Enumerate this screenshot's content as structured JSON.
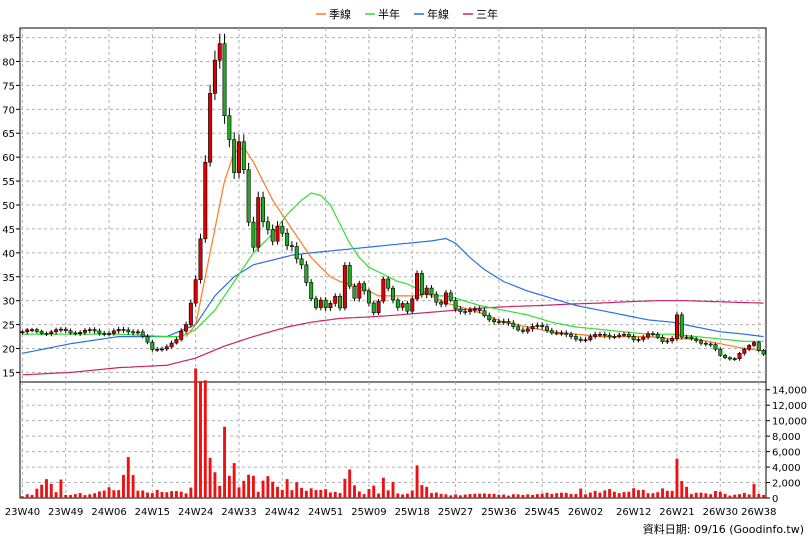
{
  "chart_data": {
    "type": "candlestick",
    "legend": [
      {
        "name": "季線",
        "color": "#ff7a20"
      },
      {
        "name": "半年",
        "color": "#33dd33"
      },
      {
        "name": "年線",
        "color": "#2a6fe0"
      },
      {
        "name": "三年",
        "color": "#cc2266"
      }
    ],
    "legend_position": "top-center",
    "price_axis": {
      "min": 13,
      "max": 87,
      "ticks": [
        15,
        20,
        25,
        30,
        35,
        40,
        45,
        50,
        55,
        60,
        65,
        70,
        75,
        80,
        85
      ],
      "grid": true
    },
    "volume_axis": {
      "min": 0,
      "max": 15000,
      "ticks": [
        0,
        2000,
        4000,
        6000,
        8000,
        10000,
        12000,
        14000
      ],
      "tick_labels": [
        "0",
        "2,000",
        "4,000",
        "6,000",
        "8,000",
        "10,000",
        "12,000",
        "14,000"
      ]
    },
    "x_ticks": [
      "23W40",
      "23W49",
      "24W06",
      "24W15",
      "24W24",
      "24W33",
      "24W42",
      "24W51",
      "25W09",
      "25W18",
      "25W27",
      "25W36",
      "25W45",
      "26W02",
      "26W12",
      "26W21",
      "26W30",
      "26W38"
    ],
    "x_tick_index": [
      0,
      9,
      18,
      27,
      36,
      45,
      54,
      63,
      72,
      81,
      90,
      99,
      108,
      117,
      127,
      136,
      145,
      153
    ],
    "num_weeks": 155,
    "price_keypoints": [
      [
        0,
        23.5
      ],
      [
        9,
        23.6
      ],
      [
        18,
        23.4
      ],
      [
        24,
        23.8
      ],
      [
        27,
        19.5
      ],
      [
        32,
        21.5
      ],
      [
        34,
        25
      ],
      [
        36,
        35
      ],
      [
        37,
        43
      ],
      [
        38,
        58
      ],
      [
        39,
        72
      ],
      [
        40,
        80
      ],
      [
        41,
        85
      ],
      [
        42,
        70
      ],
      [
        43,
        64
      ],
      [
        44,
        56
      ],
      [
        45,
        62
      ],
      [
        46,
        57
      ],
      [
        47,
        47
      ],
      [
        48,
        42
      ],
      [
        49,
        52
      ],
      [
        50,
        46
      ],
      [
        51,
        44
      ],
      [
        52,
        42
      ],
      [
        53,
        46
      ],
      [
        54,
        45
      ],
      [
        55,
        42
      ],
      [
        56,
        41
      ],
      [
        57,
        38
      ],
      [
        58,
        37
      ],
      [
        59,
        34
      ],
      [
        60,
        31
      ],
      [
        61,
        29
      ],
      [
        62,
        30
      ],
      [
        63,
        28
      ],
      [
        64,
        29
      ],
      [
        65,
        31
      ],
      [
        66,
        29
      ],
      [
        67,
        38
      ],
      [
        68,
        33
      ],
      [
        69,
        30
      ],
      [
        70,
        33
      ],
      [
        71,
        32
      ],
      [
        72,
        30
      ],
      [
        73,
        28
      ],
      [
        74,
        30
      ],
      [
        75,
        34
      ],
      [
        76,
        32
      ],
      [
        77,
        30
      ],
      [
        78,
        29
      ],
      [
        79,
        30
      ],
      [
        80,
        28
      ],
      [
        81,
        30
      ],
      [
        82,
        35
      ],
      [
        83,
        31
      ],
      [
        84,
        33
      ],
      [
        85,
        32
      ],
      [
        86,
        30
      ],
      [
        87,
        29
      ],
      [
        88,
        31
      ],
      [
        90,
        28.5
      ],
      [
        95,
        27.5
      ],
      [
        99,
        25.5
      ],
      [
        104,
        24
      ],
      [
        108,
        24.5
      ],
      [
        113,
        22.5
      ],
      [
        117,
        22
      ],
      [
        121,
        23
      ],
      [
        125,
        22.5
      ],
      [
        127,
        22
      ],
      [
        130,
        23
      ],
      [
        133,
        21.5
      ],
      [
        135,
        22.5
      ],
      [
        136,
        27
      ],
      [
        137,
        22
      ],
      [
        140,
        22
      ],
      [
        143,
        20.5
      ],
      [
        145,
        18.5
      ],
      [
        148,
        18
      ],
      [
        150,
        19.5
      ],
      [
        152,
        21.5
      ],
      [
        153,
        20
      ],
      [
        154,
        19
      ]
    ],
    "ma_quarter": [
      [
        34,
        22.5
      ],
      [
        36,
        25
      ],
      [
        38,
        35
      ],
      [
        40,
        45
      ],
      [
        42,
        55
      ],
      [
        44,
        61
      ],
      [
        46,
        62
      ],
      [
        48,
        59
      ],
      [
        50,
        55
      ],
      [
        52,
        51
      ],
      [
        54,
        48
      ],
      [
        56,
        45
      ],
      [
        58,
        42
      ],
      [
        60,
        39
      ],
      [
        62,
        37
      ],
      [
        64,
        35
      ],
      [
        66,
        34
      ],
      [
        68,
        33.5
      ],
      [
        70,
        33
      ],
      [
        72,
        32
      ],
      [
        74,
        31
      ],
      [
        76,
        31
      ],
      [
        78,
        31
      ],
      [
        80,
        31
      ],
      [
        82,
        31
      ],
      [
        84,
        31.5
      ],
      [
        86,
        30.5
      ],
      [
        88,
        29.5
      ],
      [
        90,
        29
      ],
      [
        95,
        27.5
      ],
      [
        100,
        25.5
      ],
      [
        105,
        24.5
      ],
      [
        110,
        23.5
      ],
      [
        115,
        23
      ],
      [
        120,
        22.5
      ],
      [
        125,
        22.5
      ],
      [
        130,
        22.5
      ],
      [
        135,
        22
      ],
      [
        140,
        22
      ],
      [
        145,
        21
      ],
      [
        150,
        20
      ],
      [
        154,
        19.5
      ]
    ],
    "ma_half": [
      [
        0,
        23
      ],
      [
        20,
        23
      ],
      [
        30,
        22.5
      ],
      [
        33,
        22.5
      ],
      [
        36,
        24
      ],
      [
        40,
        28
      ],
      [
        44,
        34
      ],
      [
        48,
        40
      ],
      [
        52,
        44
      ],
      [
        55,
        48
      ],
      [
        58,
        51
      ],
      [
        60,
        52.5
      ],
      [
        62,
        52
      ],
      [
        64,
        50
      ],
      [
        66,
        46
      ],
      [
        68,
        42
      ],
      [
        70,
        39
      ],
      [
        72,
        37
      ],
      [
        74,
        36
      ],
      [
        76,
        35
      ],
      [
        78,
        34
      ],
      [
        80,
        33.5
      ],
      [
        82,
        32.5
      ],
      [
        84,
        31.5
      ],
      [
        86,
        31
      ],
      [
        88,
        31
      ],
      [
        90,
        30.5
      ],
      [
        95,
        29
      ],
      [
        100,
        28
      ],
      [
        105,
        27
      ],
      [
        110,
        25.5
      ],
      [
        115,
        24.5
      ],
      [
        120,
        24
      ],
      [
        125,
        23.5
      ],
      [
        130,
        23
      ],
      [
        135,
        23
      ],
      [
        140,
        22.5
      ],
      [
        145,
        22
      ],
      [
        150,
        21.5
      ],
      [
        154,
        21.5
      ]
    ],
    "ma_year": [
      [
        0,
        19
      ],
      [
        10,
        21
      ],
      [
        20,
        22.5
      ],
      [
        30,
        22.5
      ],
      [
        36,
        25
      ],
      [
        40,
        31
      ],
      [
        44,
        35
      ],
      [
        48,
        37.5
      ],
      [
        52,
        38.5
      ],
      [
        56,
        39.5
      ],
      [
        60,
        40
      ],
      [
        65,
        40.5
      ],
      [
        70,
        41
      ],
      [
        75,
        41.5
      ],
      [
        80,
        42
      ],
      [
        85,
        42.5
      ],
      [
        88,
        43
      ],
      [
        90,
        42
      ],
      [
        93,
        39
      ],
      [
        96,
        36.5
      ],
      [
        100,
        34
      ],
      [
        105,
        32
      ],
      [
        110,
        30.5
      ],
      [
        115,
        29
      ],
      [
        120,
        28
      ],
      [
        125,
        27
      ],
      [
        130,
        26
      ],
      [
        135,
        25.5
      ],
      [
        140,
        24.5
      ],
      [
        145,
        23.5
      ],
      [
        150,
        23
      ],
      [
        154,
        22.5
      ]
    ],
    "ma_3year": [
      [
        0,
        14.5
      ],
      [
        10,
        15
      ],
      [
        20,
        16
      ],
      [
        30,
        16.5
      ],
      [
        36,
        18
      ],
      [
        42,
        20.5
      ],
      [
        48,
        22.5
      ],
      [
        55,
        24.5
      ],
      [
        60,
        25.5
      ],
      [
        66,
        26.3
      ],
      [
        72,
        26.6
      ],
      [
        78,
        27
      ],
      [
        84,
        27.5
      ],
      [
        90,
        28
      ],
      [
        96,
        28.5
      ],
      [
        102,
        28.8
      ],
      [
        108,
        29
      ],
      [
        114,
        29.3
      ],
      [
        120,
        29.5
      ],
      [
        126,
        29.8
      ],
      [
        132,
        30
      ],
      [
        138,
        30
      ],
      [
        144,
        29.8
      ],
      [
        150,
        29.6
      ],
      [
        154,
        29.5
      ]
    ],
    "volume_keypoints": [
      [
        0,
        300
      ],
      [
        2,
        500
      ],
      [
        5,
        2500
      ],
      [
        7,
        900
      ],
      [
        8,
        2200
      ],
      [
        9,
        400
      ],
      [
        11,
        600
      ],
      [
        13,
        500
      ],
      [
        16,
        700
      ],
      [
        18,
        1300
      ],
      [
        20,
        900
      ],
      [
        22,
        4900
      ],
      [
        24,
        800
      ],
      [
        25,
        900
      ],
      [
        27,
        500
      ],
      [
        28,
        900
      ],
      [
        30,
        600
      ],
      [
        32,
        1000
      ],
      [
        34,
        700
      ],
      [
        35,
        1300
      ],
      [
        36,
        13500
      ],
      [
        37,
        12500
      ],
      [
        38,
        15000
      ],
      [
        39,
        6000
      ],
      [
        40,
        3500
      ],
      [
        41,
        2000
      ],
      [
        42,
        9000
      ],
      [
        43,
        2500
      ],
      [
        44,
        5000
      ],
      [
        45,
        1200
      ],
      [
        46,
        2500
      ],
      [
        47,
        3000
      ],
      [
        48,
        3500
      ],
      [
        49,
        1000
      ],
      [
        50,
        2500
      ],
      [
        51,
        3500
      ],
      [
        52,
        2500
      ],
      [
        53,
        1500
      ],
      [
        54,
        1000
      ],
      [
        55,
        3000
      ],
      [
        56,
        1000
      ],
      [
        57,
        1800
      ],
      [
        58,
        1200
      ],
      [
        59,
        800
      ],
      [
        60,
        1500
      ],
      [
        61,
        1300
      ],
      [
        62,
        900
      ],
      [
        63,
        1500
      ],
      [
        64,
        900
      ],
      [
        65,
        1000
      ],
      [
        66,
        600
      ],
      [
        67,
        2200
      ],
      [
        68,
        3500
      ],
      [
        69,
        1500
      ],
      [
        70,
        800
      ],
      [
        71,
        500
      ],
      [
        72,
        1000
      ],
      [
        73,
        1300
      ],
      [
        74,
        500
      ],
      [
        75,
        2500
      ],
      [
        76,
        1200
      ],
      [
        77,
        1900
      ],
      [
        78,
        700
      ],
      [
        79,
        600
      ],
      [
        80,
        500
      ],
      [
        81,
        1000
      ],
      [
        82,
        3500
      ],
      [
        83,
        1500
      ],
      [
        84,
        1200
      ],
      [
        85,
        600
      ],
      [
        86,
        700
      ],
      [
        87,
        500
      ],
      [
        90,
        400
      ],
      [
        95,
        500
      ],
      [
        100,
        400
      ],
      [
        105,
        400
      ],
      [
        110,
        600
      ],
      [
        115,
        500
      ],
      [
        116,
        1200
      ],
      [
        117,
        600
      ],
      [
        120,
        800
      ],
      [
        123,
        1000
      ],
      [
        125,
        700
      ],
      [
        128,
        1300
      ],
      [
        130,
        600
      ],
      [
        133,
        1000
      ],
      [
        135,
        800
      ],
      [
        136,
        6200
      ],
      [
        137,
        1900
      ],
      [
        139,
        600
      ],
      [
        141,
        800
      ],
      [
        143,
        600
      ],
      [
        145,
        900
      ],
      [
        147,
        400
      ],
      [
        149,
        500
      ],
      [
        151,
        600
      ],
      [
        152,
        2300
      ],
      [
        153,
        500
      ],
      [
        154,
        400
      ]
    ],
    "footer_text": "資料日期: 09/16  (Goodinfo.tw)"
  }
}
